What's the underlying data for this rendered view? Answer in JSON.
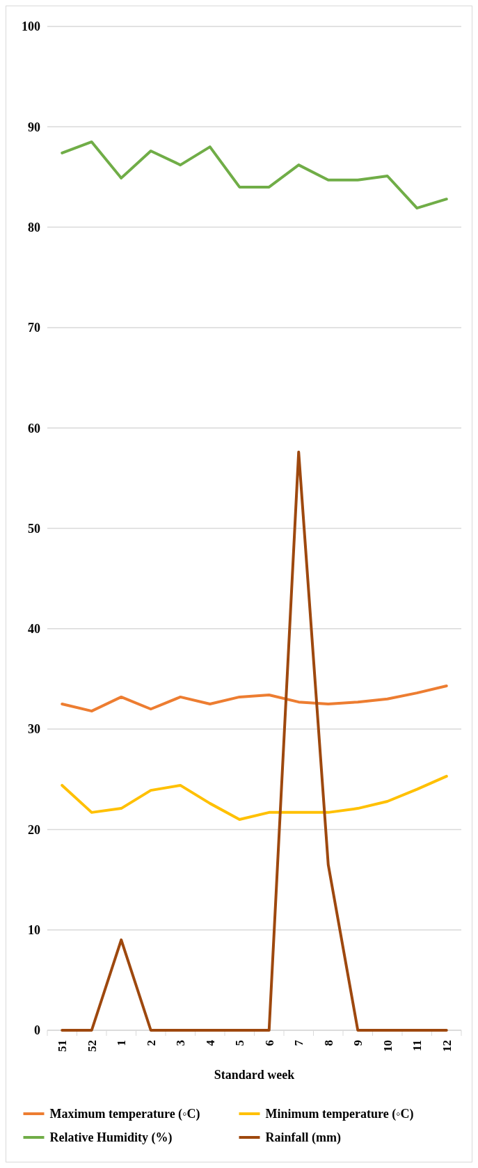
{
  "chart_data": {
    "type": "line",
    "xlabel": "Standard week",
    "categories": [
      "51",
      "52",
      "1",
      "2",
      "3",
      "4",
      "5",
      "6",
      "7",
      "8",
      "9",
      "10",
      "11",
      "12"
    ],
    "series": [
      {
        "name": "Maximum temperature (◦C)",
        "color": "#ed7d31",
        "values": [
          32.5,
          31.8,
          33.2,
          32,
          33.2,
          32.5,
          33.2,
          33.4,
          32.7,
          32.5,
          32.7,
          33,
          33.6,
          34.3
        ]
      },
      {
        "name": "Minimum temperature (◦C)",
        "color": "#ffc000",
        "values": [
          24.4,
          21.7,
          22.1,
          23.9,
          24.4,
          22.6,
          21,
          21.7,
          21.7,
          21.7,
          22.1,
          22.8,
          24,
          25.3
        ]
      },
      {
        "name": "Relative Humidity (%)",
        "color": "#70ad47",
        "values": [
          87.4,
          88.5,
          84.9,
          87.6,
          86.2,
          88,
          84,
          84,
          86.2,
          84.7,
          84.7,
          85.1,
          81.9,
          82.8
        ]
      },
      {
        "name": "Rainfall (mm)",
        "color": "#9e480e",
        "values": [
          0,
          0,
          9,
          0,
          0,
          0,
          0,
          0,
          57.6,
          16.5,
          0,
          0,
          0,
          0
        ]
      }
    ],
    "ylim": [
      0,
      100
    ],
    "yticks": [
      0,
      10,
      20,
      30,
      40,
      50,
      60,
      70,
      80,
      90,
      100
    ],
    "grid": "y",
    "legend": "bottom",
    "marker": "none",
    "line_style": "solid"
  }
}
